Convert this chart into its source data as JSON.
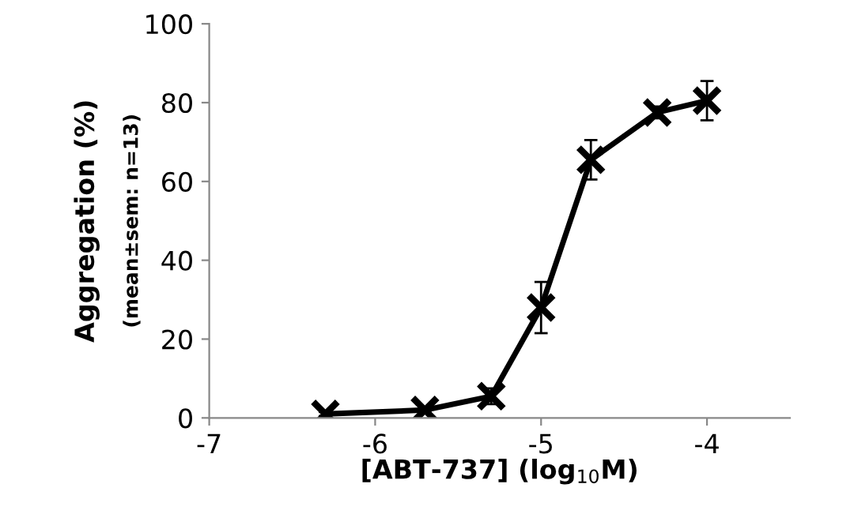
{
  "chart_data": {
    "type": "line",
    "xlabel": "[ABT-737] (log$_{10}$M)",
    "ylabel": "Aggregation (%)",
    "annotations": [
      "(mean±sem: n=13)"
    ],
    "x": [
      -6.3,
      -5.7,
      -5.3,
      -5,
      -4.7,
      -4.3,
      -4
    ],
    "series": [
      {
        "color": "#000000",
        "values": [
          1,
          2,
          5.5,
          28,
          65.5,
          77.5,
          80.5
        ],
        "errors": [
          0.5,
          0.5,
          2,
          6.5,
          5,
          1.5,
          5
        ]
      }
    ],
    "xlim": [
      -7,
      -3.5
    ],
    "xticks": [
      -7,
      -6,
      -5,
      -4
    ],
    "ylim": [
      0,
      100
    ],
    "yticks": [
      0,
      20,
      40,
      60,
      80,
      100
    ],
    "marker": "cross",
    "line_style": "solid",
    "grid": false,
    "legend": false
  }
}
